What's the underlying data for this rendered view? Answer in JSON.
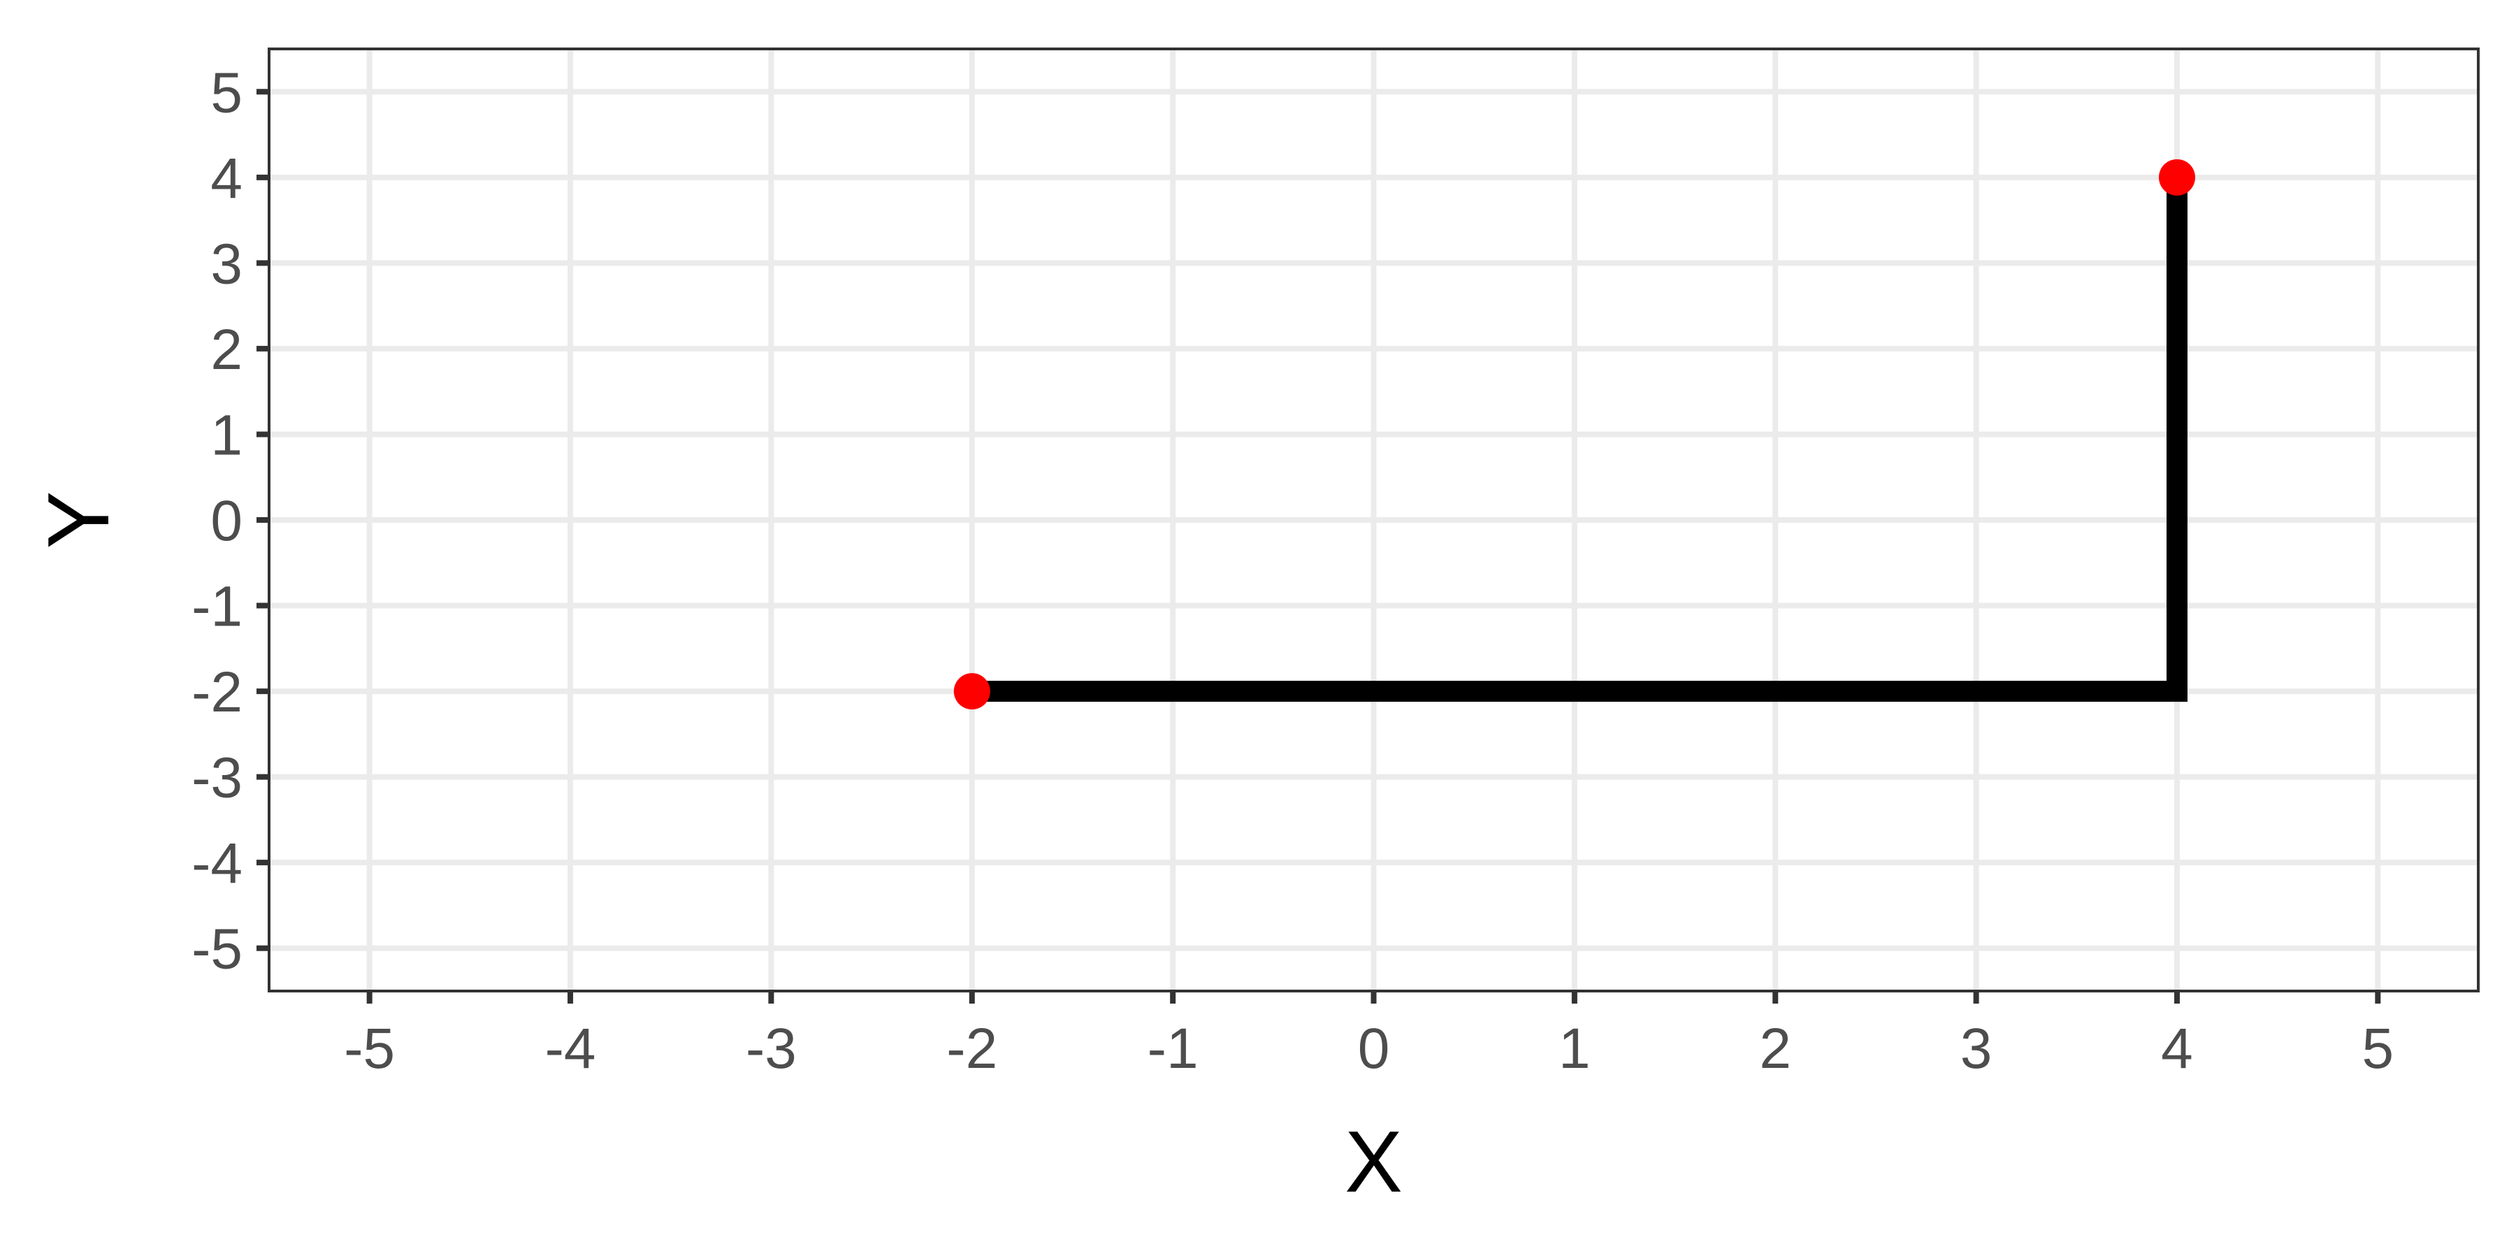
{
  "chart_data": {
    "type": "line",
    "title": "",
    "xlabel": "X",
    "ylabel": "Y",
    "xlim": [
      -5.5,
      5.5
    ],
    "ylim": [
      -5.5,
      5.5
    ],
    "x_ticks": [
      "-5",
      "-4",
      "-3",
      "-2",
      "-1",
      "0",
      "1",
      "2",
      "3",
      "4",
      "5"
    ],
    "y_ticks": [
      "-5",
      "-4",
      "-3",
      "-2",
      "-1",
      "0",
      "1",
      "2",
      "3",
      "4",
      "5"
    ],
    "grid": true,
    "legend": "none",
    "path": {
      "x": [
        -2,
        4,
        4
      ],
      "y": [
        -2,
        -2,
        4
      ],
      "color": "#000000"
    },
    "points": {
      "x": [
        -2,
        4
      ],
      "y": [
        -2,
        4
      ],
      "color": "#ff0000"
    },
    "colors": {
      "panel_border": "#333333",
      "grid": "#ebebeb",
      "tick_label": "#4d4d4d",
      "axis_title": "#000000"
    }
  }
}
